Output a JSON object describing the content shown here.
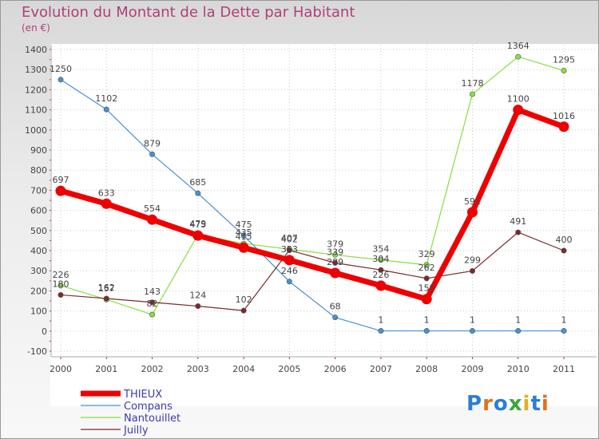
{
  "title": "Evolution du Montant de la Dette par Habitant",
  "subtitle": "(en €)",
  "logo_text": "Proxiti",
  "chart_data": {
    "type": "line",
    "title": "Evolution du Montant de la Dette par Habitant",
    "subtitle": "(en €)",
    "categories": [
      "2000",
      "2001",
      "2002",
      "2003",
      "2004",
      "2005",
      "2006",
      "2007",
      "2008",
      "2009",
      "2010",
      "2011"
    ],
    "ylim": [
      -100,
      1400
    ],
    "yticks": [
      -100,
      0,
      100,
      200,
      300,
      400,
      500,
      600,
      700,
      800,
      900,
      1000,
      1100,
      1200,
      1300,
      1400
    ],
    "grid": true,
    "legend_position": "bottom-left",
    "series": [
      {
        "name": "Compans",
        "color": "#4a90d0",
        "values": [
          1250,
          1102,
          879,
          685,
          475,
          246,
          68,
          1,
          1,
          1,
          1,
          1
        ]
      },
      {
        "name": "Nantouillet",
        "color": "#88dd44",
        "values": [
          226,
          157,
          82,
          479,
          435,
          407,
          379,
          354,
          329,
          1178,
          1364,
          1295
        ]
      },
      {
        "name": "Juilly",
        "color": "#7a2a2a",
        "values": [
          180,
          162,
          143,
          124,
          102,
          402,
          339,
          304,
          262,
          299,
          491,
          400
        ]
      },
      {
        "name": "THIEUX",
        "color": "#ee0000",
        "values": [
          697,
          633,
          554,
          475,
          415,
          353,
          289,
          226,
          159,
          591,
          1100,
          1016
        ]
      }
    ],
    "legend_order": [
      "THIEUX",
      "Compans",
      "Nantouillet",
      "Juilly"
    ]
  }
}
